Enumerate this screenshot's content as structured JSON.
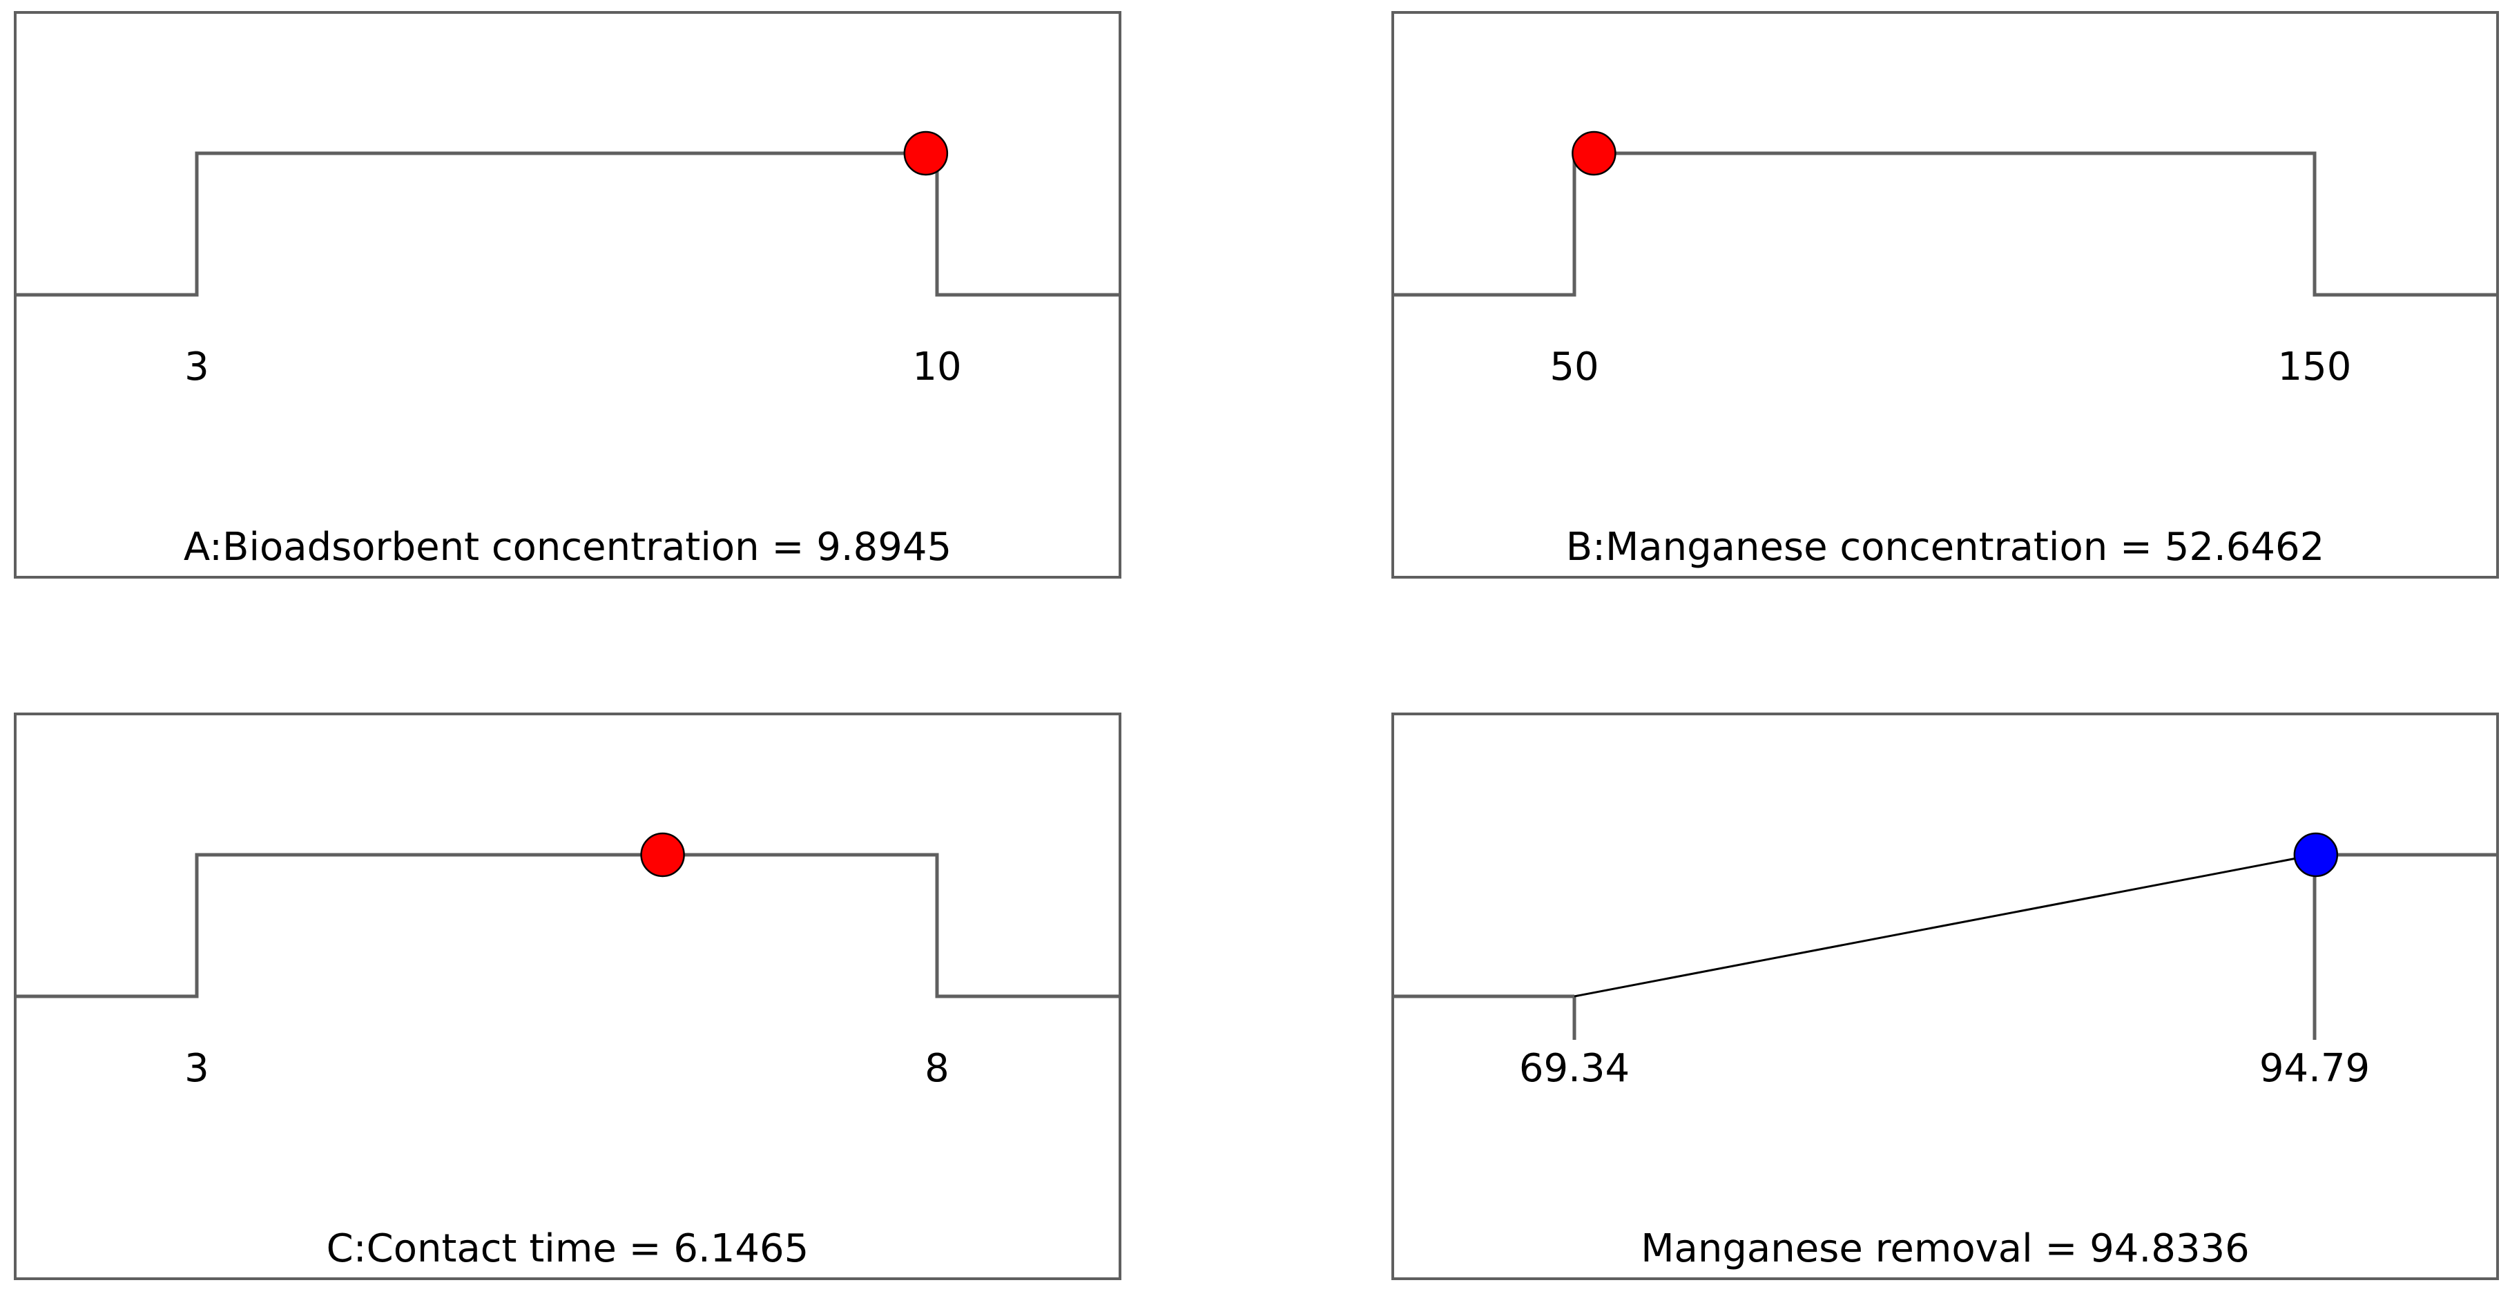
{
  "figure": {
    "colors": {
      "frame": "#5f5f5f",
      "ramp": "#000000",
      "factor_marker": "#ff0000",
      "response_marker": "#0000ff",
      "marker_edge": "#000000"
    }
  },
  "chart_data": [
    {
      "id": "A",
      "type": "desirability-step",
      "low": 3,
      "high": 10,
      "value": 9.8945,
      "low_label": "3",
      "high_label": "10",
      "label": "A:Bioadsorbent concentration = 9.8945",
      "marker_color": "#ff0000"
    },
    {
      "id": "B",
      "type": "desirability-step",
      "low": 50,
      "high": 150,
      "value": 52.6462,
      "low_label": "50",
      "high_label": "150",
      "label": "B:Manganese concentration = 52.6462",
      "marker_color": "#ff0000"
    },
    {
      "id": "C",
      "type": "desirability-step",
      "low": 3,
      "high": 8,
      "value": 6.1465,
      "low_label": "3",
      "high_label": "8",
      "label": "C:Contact time = 6.1465",
      "marker_color": "#ff0000"
    },
    {
      "id": "R",
      "type": "desirability-ramp",
      "low": 69.34,
      "high": 94.79,
      "value": 94.8336,
      "low_label": "69.34",
      "high_label": "94.79",
      "label": "Manganese removal = 94.8336",
      "marker_color": "#0000ff"
    }
  ]
}
